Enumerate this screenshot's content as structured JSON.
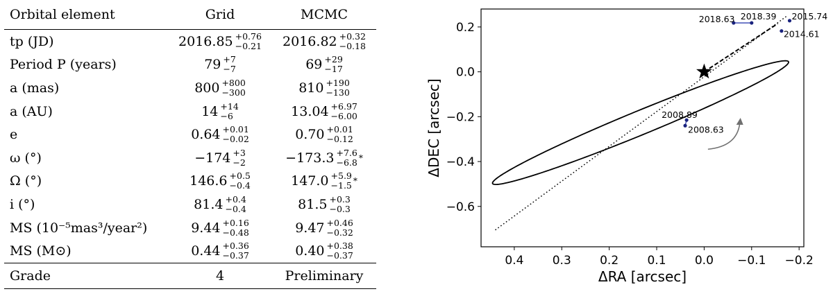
{
  "table": {
    "headers": [
      "Orbital element",
      "Grid",
      "MCMC"
    ],
    "rows": [
      {
        "label": "tp (JD)",
        "grid": {
          "v": "2016.85",
          "p": "+0.76",
          "m": "−0.21"
        },
        "mcmc": {
          "v": "2016.82",
          "p": "+0.32",
          "m": "−0.18"
        }
      },
      {
        "label": "Period P (years)",
        "grid": {
          "v": "79",
          "p": "+7",
          "m": "−7"
        },
        "mcmc": {
          "v": "69",
          "p": "+29",
          "m": "−17"
        }
      },
      {
        "label": "a (mas)",
        "grid": {
          "v": "800",
          "p": "+800",
          "m": "−300"
        },
        "mcmc": {
          "v": "810",
          "p": "+190",
          "m": "−130"
        }
      },
      {
        "label": "a (AU)",
        "grid": {
          "v": "14",
          "p": "+14",
          "m": "−6"
        },
        "mcmc": {
          "v": "13.04",
          "p": "+6.97",
          "m": "−6.00"
        }
      },
      {
        "label": "e",
        "grid": {
          "v": "0.64",
          "p": "+0.01",
          "m": "−0.02"
        },
        "mcmc": {
          "v": "0.70",
          "p": "+0.01",
          "m": "−0.12"
        }
      },
      {
        "label": "ω (°)",
        "grid": {
          "v": "−174",
          "p": "+3",
          "m": "−2"
        },
        "mcmc": {
          "v": "−173.3",
          "p": "+7.6",
          "m": "−6.8",
          "note": "*"
        }
      },
      {
        "label": "Ω (°)",
        "grid": {
          "v": "146.6",
          "p": "+0.5",
          "m": "−0.4"
        },
        "mcmc": {
          "v": "147.0",
          "p": "+5.9",
          "m": "−1.5",
          "note": "*"
        }
      },
      {
        "label": "i (°)",
        "grid": {
          "v": "81.4",
          "p": "+0.4",
          "m": "−0.4"
        },
        "mcmc": {
          "v": "81.5",
          "p": "+0.3",
          "m": "−0.3"
        }
      },
      {
        "label": "MS (10⁻⁵mas³/year²)",
        "grid": {
          "v": "9.44",
          "p": "+0.16",
          "m": "−0.48"
        },
        "mcmc": {
          "v": "9.47",
          "p": "+0.46",
          "m": "−0.32"
        }
      },
      {
        "label": "MS (M⊙)",
        "grid": {
          "v": "0.44",
          "p": "+0.36",
          "m": "−0.37"
        },
        "mcmc": {
          "v": "0.40",
          "p": "+0.38",
          "m": "−0.37"
        }
      }
    ],
    "grade": {
      "label": "Grade",
      "grid": "4",
      "mcmc": "Preliminary"
    }
  },
  "chart_data": {
    "type": "scatter",
    "xlabel": "ΔRA [arcsec]",
    "ylabel": "ΔDEC [arcsec]",
    "xlim": [
      0.47,
      -0.21
    ],
    "ylim": [
      -0.78,
      0.28
    ],
    "xticks": [
      0.4,
      0.3,
      0.2,
      0.1,
      0.0,
      -0.1,
      -0.2
    ],
    "xtick_labels": [
      "0.4",
      "0.3",
      "0.2",
      "0.1",
      "0.0",
      "−0.1",
      "−0.2"
    ],
    "yticks": [
      0.2,
      0.0,
      -0.2,
      -0.4,
      -0.6
    ],
    "ytick_labels": [
      "0.2",
      "0.0",
      "−0.2",
      "−0.4",
      "−0.6"
    ],
    "orbit_ellipse": {
      "center": [
        0.134,
        -0.2265
      ],
      "semi_major": 0.414,
      "semi_minor": 0.0435,
      "angle_deg": 138.6
    },
    "star": {
      "x": 0.0,
      "y": 0.0
    },
    "observations": [
      {
        "label": "2008.63",
        "x": 0.04,
        "y": -0.24
      },
      {
        "label": "2008.89",
        "x": 0.037,
        "y": -0.215
      },
      {
        "label": "2014.61",
        "x": -0.163,
        "y": 0.182
      },
      {
        "label": "2015.74",
        "x": -0.18,
        "y": 0.228
      },
      {
        "label": "2018.39",
        "x": -0.1,
        "y": 0.218
      },
      {
        "label": "2018.63",
        "x": -0.062,
        "y": 0.218
      }
    ],
    "node_line": {
      "from": [
        0.44,
        -0.705
      ],
      "to": [
        -0.175,
        0.25
      ]
    },
    "periastron_line": {
      "from": [
        0.0,
        0.0
      ],
      "to": [
        -0.155,
        0.215
      ]
    },
    "direction_arrow": {
      "from": [
        -0.008,
        -0.345
      ],
      "to": [
        -0.075,
        -0.205
      ]
    }
  }
}
